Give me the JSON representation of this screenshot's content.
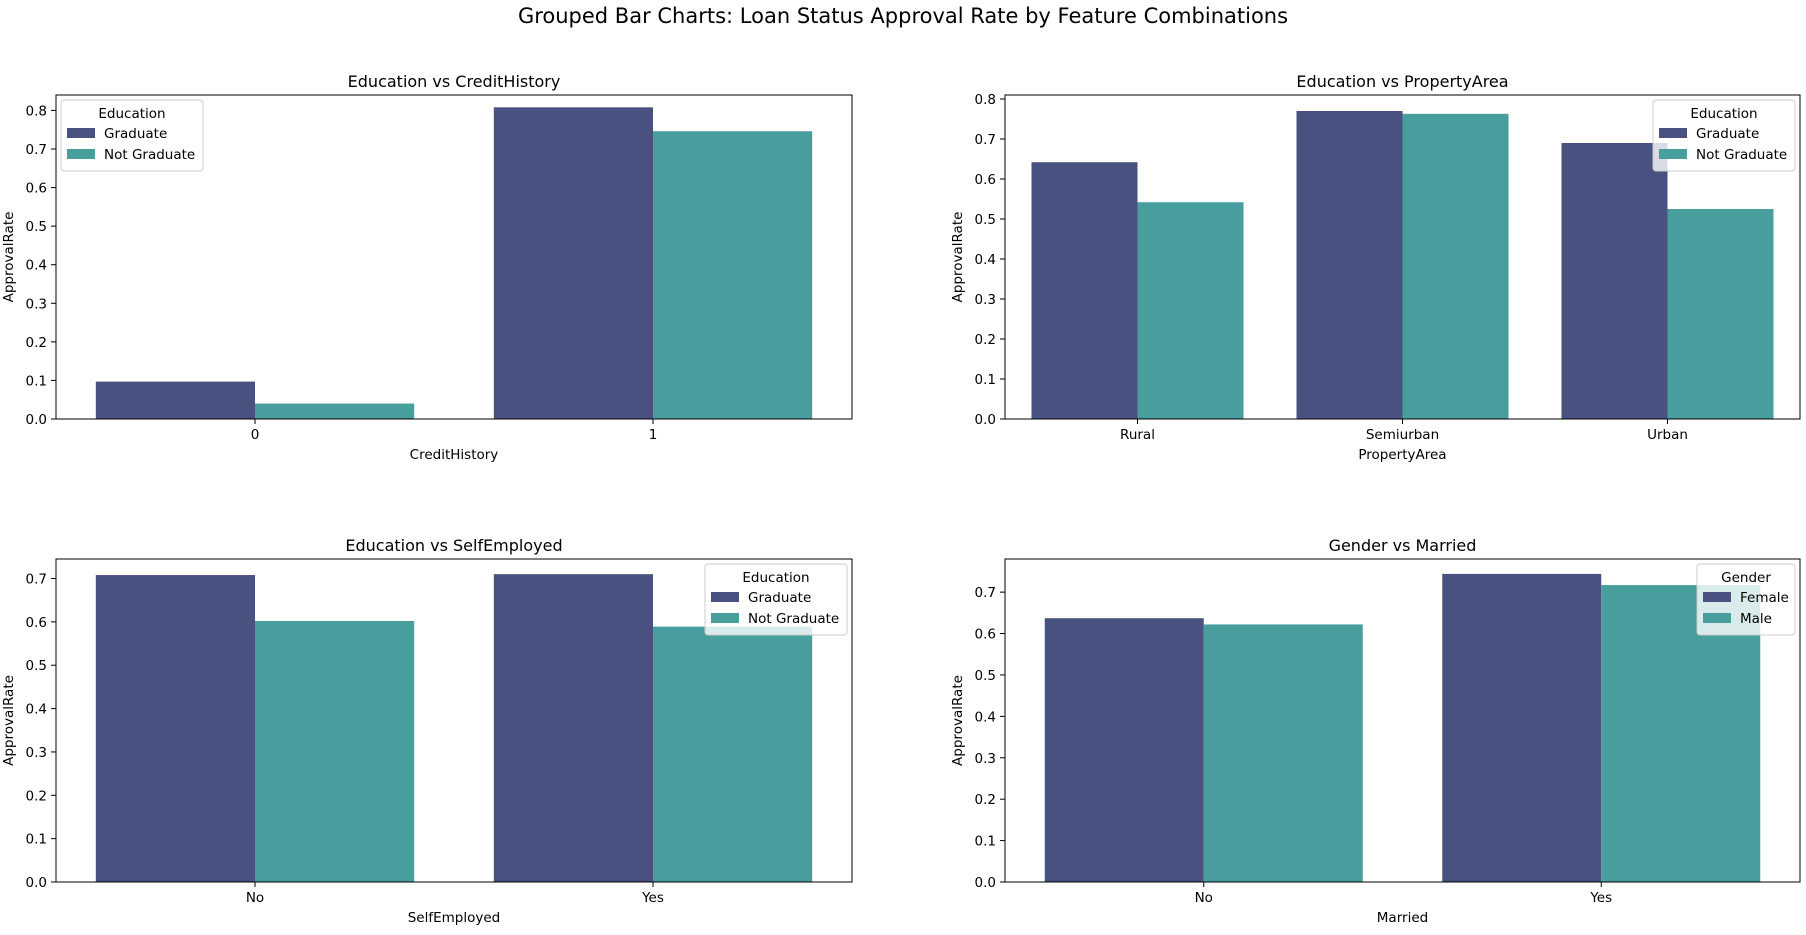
{
  "figure_title": "Grouped Bar Charts: Loan Status Approval Rate by Feature Combinations",
  "colors": {
    "series_0": "#48517f",
    "series_1": "#489d9d"
  },
  "chart_data": [
    {
      "type": "bar",
      "title": "Education vs CreditHistory",
      "xlabel": "CreditHistory",
      "ylabel": "ApprovalRate",
      "categories": [
        "0",
        "1"
      ],
      "ylim": [
        0,
        0.84
      ],
      "yticks": [
        0.0,
        0.1,
        0.2,
        0.3,
        0.4,
        0.5,
        0.6,
        0.7,
        0.8
      ],
      "legend": {
        "title": "Education",
        "position": "upper-left"
      },
      "series": [
        {
          "name": "Graduate",
          "values": [
            0.097,
            0.808
          ]
        },
        {
          "name": "Not Graduate",
          "values": [
            0.04,
            0.746
          ]
        }
      ]
    },
    {
      "type": "bar",
      "title": "Education vs PropertyArea",
      "xlabel": "PropertyArea",
      "ylabel": "ApprovalRate",
      "categories": [
        "Rural",
        "Semiurban",
        "Urban"
      ],
      "ylim": [
        0,
        0.81
      ],
      "yticks": [
        0.0,
        0.1,
        0.2,
        0.3,
        0.4,
        0.5,
        0.6,
        0.7,
        0.8
      ],
      "legend": {
        "title": "Education",
        "position": "upper-right"
      },
      "series": [
        {
          "name": "Graduate",
          "values": [
            0.642,
            0.77,
            0.69
          ]
        },
        {
          "name": "Not Graduate",
          "values": [
            0.542,
            0.763,
            0.525
          ]
        }
      ]
    },
    {
      "type": "bar",
      "title": "Education vs SelfEmployed",
      "xlabel": "SelfEmployed",
      "ylabel": "ApprovalRate",
      "categories": [
        "No",
        "Yes"
      ],
      "ylim": [
        0,
        0.745
      ],
      "yticks": [
        0.0,
        0.1,
        0.2,
        0.3,
        0.4,
        0.5,
        0.6,
        0.7
      ],
      "legend": {
        "title": "Education",
        "position": "upper-right"
      },
      "series": [
        {
          "name": "Graduate",
          "values": [
            0.708,
            0.71
          ]
        },
        {
          "name": "Not Graduate",
          "values": [
            0.602,
            0.589
          ]
        }
      ]
    },
    {
      "type": "bar",
      "title": "Gender vs Married",
      "xlabel": "Married",
      "ylabel": "ApprovalRate",
      "categories": [
        "No",
        "Yes"
      ],
      "ylim": [
        0,
        0.78
      ],
      "yticks": [
        0.0,
        0.1,
        0.2,
        0.3,
        0.4,
        0.5,
        0.6,
        0.7
      ],
      "legend": {
        "title": "Gender",
        "position": "upper-right"
      },
      "series": [
        {
          "name": "Female",
          "values": [
            0.637,
            0.744
          ]
        },
        {
          "name": "Male",
          "values": [
            0.622,
            0.717
          ]
        }
      ]
    }
  ]
}
